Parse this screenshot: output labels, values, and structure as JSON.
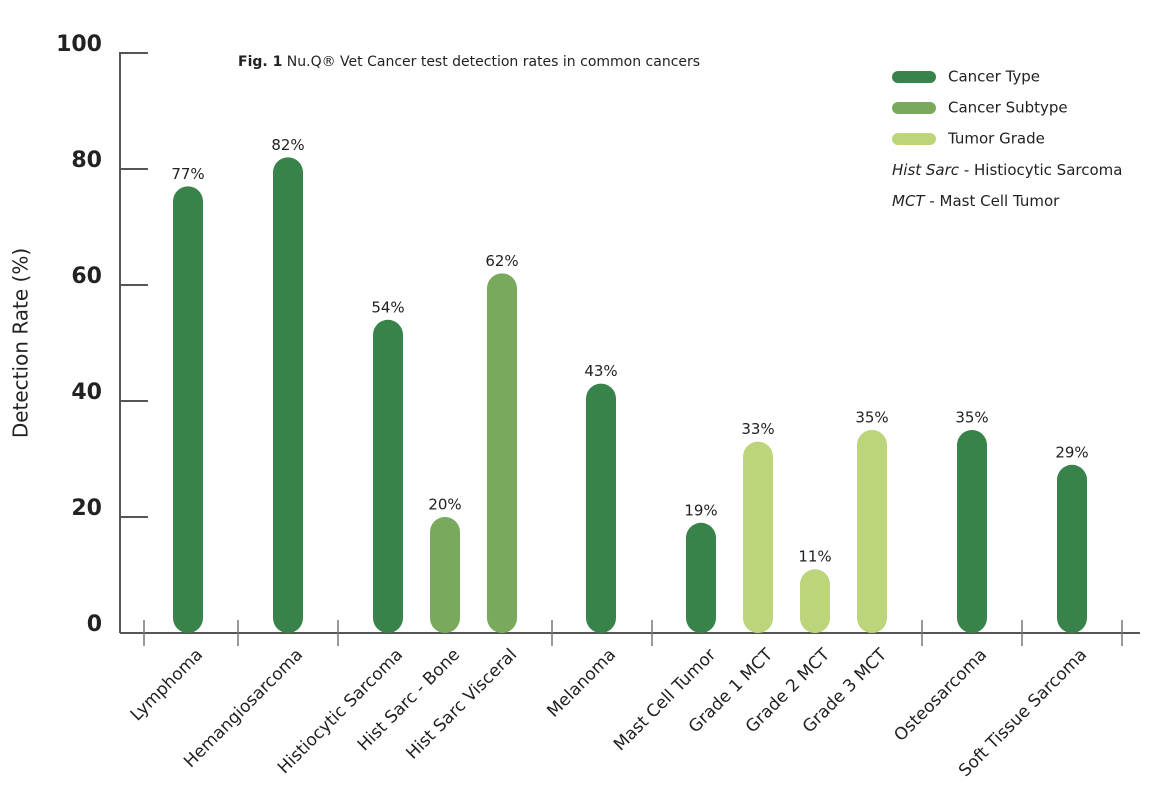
{
  "chart_data": {
    "type": "bar",
    "title_prefix": "Fig. 1",
    "title": "Nu.Q® Vet Cancer test detection rates in common cancers",
    "y_label": "Detection Rate (%)",
    "categories": [
      "Lymphoma",
      "Hemangiosarcoma",
      "Histiocytic Sarcoma",
      "Hist Sarc - Bone",
      "Hist Sarc Visceral",
      "Melanoma",
      "Mast Cell Tumor",
      "Grade 1 MCT",
      "Grade 2 MCT",
      "Grade 3 MCT",
      "Osteosarcoma",
      "Soft Tissue Sarcoma"
    ],
    "series": [
      {
        "name": "Cancer Type",
        "color": "#37834a",
        "values": [
          77,
          82,
          54,
          null,
          null,
          43,
          19,
          null,
          null,
          null,
          35,
          29
        ],
        "value_labels": [
          "77%",
          "82%",
          "54%",
          null,
          null,
          "43%",
          "19%",
          null,
          null,
          null,
          "35%",
          "29%"
        ]
      },
      {
        "name": "Cancer Subtype",
        "color": "#78a95c",
        "values": [
          null,
          null,
          null,
          20,
          62,
          null,
          null,
          null,
          null,
          null,
          null,
          null
        ],
        "value_labels": [
          null,
          null,
          null,
          "20%",
          "62%",
          null,
          null,
          null,
          null,
          null,
          null,
          null
        ]
      },
      {
        "name": "Tumor Grade",
        "color": "#bcd47a",
        "values": [
          null,
          null,
          null,
          null,
          null,
          null,
          null,
          33,
          11,
          35,
          null,
          null
        ],
        "value_labels": [
          null,
          null,
          null,
          null,
          null,
          null,
          null,
          "33%",
          "11%",
          "35%",
          null,
          null
        ]
      }
    ],
    "notes": [
      {
        "term": "Hist Sarc",
        "definition": "- Histiocytic Sarcoma"
      },
      {
        "term": "MCT",
        "definition": "- Mast Cell Tumor"
      }
    ],
    "ylim": [
      0,
      100
    ],
    "yticks": [
      0,
      20,
      40,
      60,
      80,
      100
    ],
    "grid": false
  }
}
